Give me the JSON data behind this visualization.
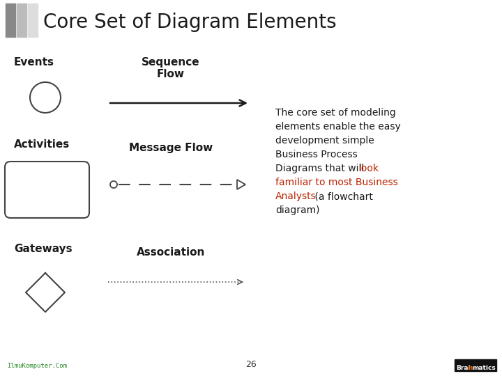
{
  "title": "Core Set of Diagram Elements",
  "title_fontsize": 20,
  "bg_color": "#ffffff",
  "title_bar_colors": [
    "#888888",
    "#bbbbbb",
    "#dddddd"
  ],
  "events_label": "Events",
  "activities_label": "Activities",
  "gateways_label": "Gateways",
  "seq_flow_label": "Sequence\nFlow",
  "msg_flow_label": "Message Flow",
  "assoc_label": "Association",
  "text_black": "#1a1a1a",
  "text_red": "#bb2200",
  "page_number": "26",
  "footer_left": "IlmuKomputer.Com",
  "footer_right": "Brainmatics",
  "label_fontsize": 11,
  "body_fontsize": 10
}
